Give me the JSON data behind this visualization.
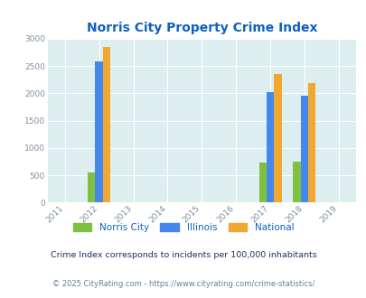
{
  "title": "Norris City Property Crime Index",
  "title_color": "#1060c0",
  "years": [
    2011,
    2012,
    2013,
    2014,
    2015,
    2016,
    2017,
    2018,
    2019
  ],
  "data": {
    "Norris City": {
      "2012": 560,
      "2017": 740,
      "2018": 755
    },
    "Illinois": {
      "2012": 2580,
      "2017": 2020,
      "2018": 1950
    },
    "National": {
      "2012": 2855,
      "2017": 2360,
      "2018": 2185
    }
  },
  "colors": {
    "Norris City": "#80c040",
    "Illinois": "#4488ee",
    "National": "#f0a830"
  },
  "bar_width": 0.22,
  "ylim": [
    0,
    3000
  ],
  "yticks": [
    0,
    500,
    1000,
    1500,
    2000,
    2500,
    3000
  ],
  "background_color": "#ddeef0",
  "grid_color": "#ffffff",
  "tick_color": "#8090a0",
  "footnote1": "Crime Index corresponds to incidents per 100,000 inhabitants",
  "footnote2": "© 2025 CityRating.com - https://www.cityrating.com/crime-statistics/",
  "footnote1_color": "#203060",
  "footnote2_color": "#6080a0"
}
